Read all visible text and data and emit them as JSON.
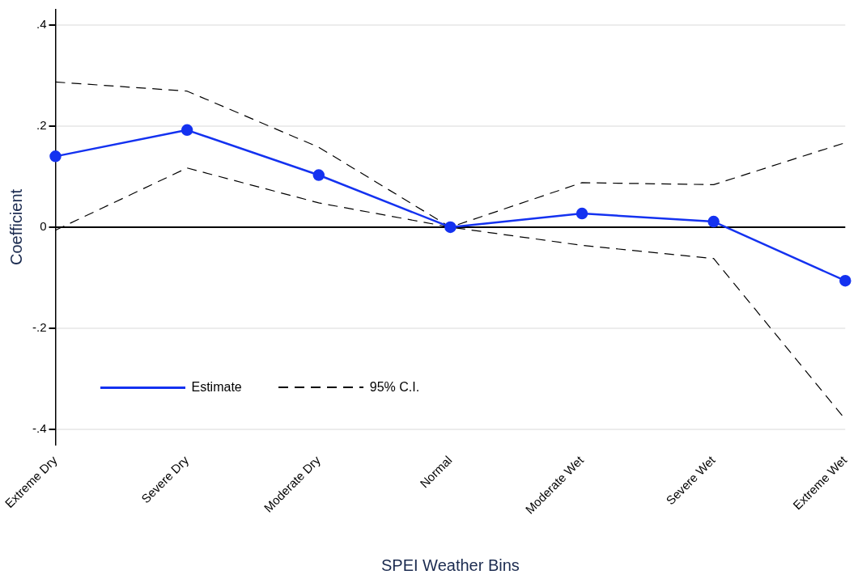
{
  "chart_data": {
    "type": "line",
    "xlabel": "SPEI Weather Bins",
    "ylabel": "Coefficient",
    "categories": [
      "Extreme Dry",
      "Severe Dry",
      "Moderate Dry",
      "Normal",
      "Moderate Wet",
      "Severe Wet",
      "Extreme Wet"
    ],
    "series": [
      {
        "name": "Estimate",
        "color": "#1432f0",
        "marker": "circle",
        "line_style": "solid",
        "values": [
          0.14,
          0.192,
          0.103,
          0,
          0.027,
          0.011,
          -0.106
        ]
      },
      {
        "name": "95% C.I.",
        "color": "#000000",
        "marker": "none",
        "line_style": "dashed",
        "values": [
          0.287,
          0.269,
          0.158,
          0,
          0.088,
          0.084,
          0.167
        ]
      },
      {
        "color": "#000000",
        "marker": "none",
        "line_style": "dashed",
        "values": [
          -0.006,
          0.117,
          0.048,
          0,
          -0.036,
          -0.062,
          -0.38
        ]
      }
    ],
    "ylim": [
      -0.43,
      0.43
    ],
    "yticks": [
      {
        "value": -0.4,
        "label": "-.4"
      },
      {
        "value": -0.2,
        "label": "-.2"
      },
      0,
      {
        "value": 0.2,
        "label": ".2"
      },
      {
        "value": 0.4,
        "label": ".4"
      }
    ],
    "ref_lines": [
      {
        "axis": "y",
        "value": 0,
        "color": "#000000"
      }
    ],
    "grid": "y",
    "legend": "bottom left"
  }
}
